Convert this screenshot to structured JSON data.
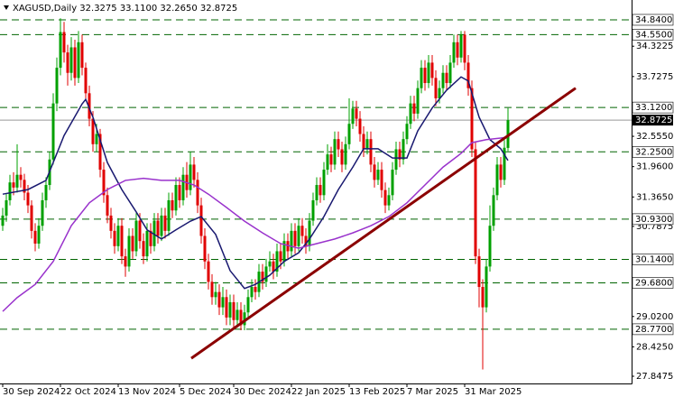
{
  "chart_data": {
    "type": "candlestick",
    "title": "XAGUSD,Daily  32.3275 33.1100 32.2650 32.8725",
    "bull_color": "#00a000",
    "bear_color": "#e00000",
    "open": [
      30.8,
      31.0,
      31.3,
      31.65,
      31.55,
      31.8,
      31.7,
      31.45,
      31.2,
      30.7,
      30.45,
      30.8,
      31.3,
      31.6,
      32.1,
      33.2,
      33.9,
      34.6,
      34.2,
      33.8,
      34.3,
      33.7,
      34.4,
      33.9,
      33.4,
      32.9,
      32.4,
      32.6,
      31.9,
      31.4,
      31.0,
      30.7,
      30.4,
      30.8,
      30.2,
      30.0,
      30.6,
      30.3,
      30.9,
      30.5,
      30.2,
      30.7,
      30.4,
      30.9,
      30.6,
      31.0,
      30.7,
      31.3,
      31.1,
      31.6,
      31.3,
      31.8,
      31.5,
      32.0,
      31.7,
      31.2,
      30.6,
      30.1,
      29.7,
      29.4,
      29.5,
      29.2,
      29.4,
      29.0,
      29.3,
      28.95,
      29.15,
      28.85,
      29.1,
      29.4,
      29.6,
      29.5,
      29.9,
      29.7,
      30.0,
      30.1,
      29.9,
      30.3,
      30.1,
      30.5,
      30.3,
      30.7,
      30.4,
      30.8,
      30.6,
      30.4,
      30.9,
      31.3,
      31.6,
      31.4,
      31.9,
      32.2,
      32.0,
      32.5,
      32.3,
      32.0,
      32.4,
      32.8,
      33.1,
      32.9,
      32.6,
      32.3,
      32.5,
      32.0,
      31.7,
      31.9,
      31.5,
      31.2,
      31.4,
      31.9,
      32.3,
      32.1,
      32.5,
      32.8,
      33.2,
      33.0,
      33.5,
      33.9,
      33.6,
      34.0,
      33.7,
      33.3,
      33.5,
      33.8,
      33.6,
      34.0,
      34.4,
      34.1,
      34.55,
      34.0,
      33.5,
      32.3,
      30.2,
      29.6,
      29.2,
      30.0,
      30.8,
      31.4,
      32.0,
      31.7,
      32.3275
    ],
    "high": [
      31.15,
      31.42,
      31.8,
      31.85,
      32.4,
      31.95,
      31.82,
      31.6,
      31.3,
      30.85,
      30.95,
      31.45,
      31.75,
      32.25,
      33.4,
      34.1,
      34.87,
      34.8,
      34.35,
      34.5,
      34.45,
      34.62,
      34.55,
      34.0,
      33.55,
      33.05,
      32.8,
      32.7,
      32.05,
      31.55,
      31.15,
      30.85,
      30.95,
      30.95,
      30.35,
      30.75,
      30.75,
      31.05,
      31.05,
      30.65,
      30.85,
      30.85,
      31.05,
      31.05,
      31.15,
      31.15,
      31.45,
      31.45,
      31.75,
      31.75,
      31.95,
      32.05,
      32.25,
      32.15,
      31.85,
      31.35,
      30.75,
      30.25,
      29.85,
      29.7,
      29.65,
      29.6,
      29.55,
      29.45,
      29.45,
      29.3,
      29.3,
      29.25,
      29.55,
      29.75,
      29.75,
      30.05,
      30.05,
      30.15,
      30.3,
      30.25,
      30.45,
      30.45,
      30.65,
      30.65,
      30.85,
      30.85,
      30.95,
      30.95,
      30.75,
      31.05,
      31.45,
      31.75,
      31.75,
      32.05,
      32.4,
      32.35,
      32.65,
      32.65,
      32.45,
      32.55,
      33.3,
      33.25,
      33.25,
      33.05,
      32.75,
      32.65,
      32.65,
      32.15,
      32.05,
      32.05,
      31.65,
      31.55,
      32.05,
      32.45,
      32.45,
      32.65,
      32.95,
      33.35,
      33.35,
      33.65,
      34.05,
      34.05,
      34.15,
      34.15,
      33.85,
      33.65,
      33.95,
      33.95,
      34.15,
      34.55,
      34.55,
      34.62,
      34.62,
      34.15,
      33.65,
      32.45,
      30.35,
      29.75,
      30.15,
      31.2,
      31.55,
      32.15,
      32.15,
      32.48,
      33.11
    ],
    "low": [
      30.7,
      30.88,
      31.2,
      31.4,
      31.45,
      31.55,
      31.3,
      31.05,
      30.55,
      30.3,
      30.35,
      30.7,
      31.15,
      31.5,
      32.0,
      33.05,
      33.75,
      34.0,
      33.55,
      33.65,
      33.55,
      33.6,
      33.75,
      33.25,
      32.75,
      32.25,
      32.25,
      31.75,
      31.25,
      30.85,
      30.55,
      30.25,
      30.3,
      30.05,
      29.8,
      29.9,
      30.15,
      30.2,
      30.35,
      30.05,
      30.1,
      30.25,
      30.3,
      30.45,
      30.5,
      30.55,
      30.6,
      30.95,
      31.0,
      31.15,
      31.2,
      31.35,
      31.4,
      31.55,
      31.05,
      30.45,
      29.95,
      29.55,
      29.25,
      29.25,
      29.05,
      29.05,
      28.85,
      28.85,
      28.8,
      28.8,
      28.75,
      28.75,
      29.0,
      29.3,
      29.35,
      29.4,
      29.55,
      29.6,
      29.9,
      29.75,
      29.8,
      29.95,
      30.0,
      30.15,
      30.2,
      30.25,
      30.3,
      30.45,
      30.25,
      30.3,
      30.8,
      31.2,
      31.25,
      31.3,
      31.8,
      31.85,
      31.9,
      32.15,
      31.85,
      31.9,
      32.3,
      32.7,
      32.75,
      32.45,
      32.15,
      32.2,
      31.85,
      31.55,
      31.6,
      31.35,
      31.05,
      31.1,
      31.3,
      31.8,
      31.95,
      32.0,
      32.4,
      32.7,
      32.85,
      32.9,
      33.4,
      33.45,
      33.5,
      33.55,
      33.15,
      33.2,
      33.4,
      33.45,
      33.5,
      33.9,
      33.95,
      34.0,
      33.85,
      33.35,
      32.15,
      30.05,
      29.2,
      27.98,
      29.1,
      29.9,
      30.7,
      31.3,
      31.55,
      31.6,
      32.265
    ],
    "close": [
      31.0,
      31.3,
      31.65,
      31.55,
      31.8,
      31.7,
      31.45,
      31.2,
      30.7,
      30.45,
      30.8,
      31.3,
      31.6,
      32.1,
      33.2,
      33.9,
      34.6,
      34.2,
      33.8,
      34.3,
      33.7,
      34.4,
      33.9,
      33.4,
      32.9,
      32.4,
      32.6,
      31.9,
      31.4,
      31.0,
      30.7,
      30.4,
      30.8,
      30.2,
      30.0,
      30.6,
      30.3,
      30.9,
      30.5,
      30.2,
      30.7,
      30.4,
      30.9,
      30.6,
      31.0,
      30.7,
      31.3,
      31.1,
      31.6,
      31.3,
      31.8,
      31.5,
      32.0,
      31.7,
      31.2,
      30.6,
      30.1,
      29.7,
      29.4,
      29.5,
      29.2,
      29.4,
      29.0,
      29.3,
      28.95,
      29.15,
      28.85,
      29.1,
      29.4,
      29.6,
      29.5,
      29.9,
      29.7,
      30.0,
      30.1,
      29.9,
      30.3,
      30.1,
      30.5,
      30.3,
      30.7,
      30.4,
      30.8,
      30.6,
      30.4,
      30.9,
      31.3,
      31.6,
      31.4,
      31.9,
      32.2,
      32.0,
      32.5,
      32.3,
      32.0,
      32.4,
      32.8,
      33.1,
      32.9,
      32.6,
      32.3,
      32.5,
      32.0,
      31.7,
      31.9,
      31.5,
      31.2,
      31.4,
      31.9,
      32.3,
      32.1,
      32.5,
      32.8,
      33.2,
      33.0,
      33.5,
      33.9,
      33.6,
      34.0,
      33.7,
      33.3,
      33.5,
      33.8,
      33.6,
      34.0,
      34.4,
      34.1,
      34.55,
      34.0,
      33.5,
      32.3,
      30.2,
      29.6,
      29.2,
      30.0,
      30.8,
      31.4,
      32.0,
      31.7,
      32.33,
      32.8725
    ],
    "moving_averages": [
      {
        "color": "#191970",
        "x": [
          0,
          7,
          12,
          17,
          22,
          23,
          25,
          29,
          33,
          37,
          40,
          44,
          48,
          52,
          55,
          59,
          63,
          67,
          70,
          74,
          78,
          82,
          85,
          89,
          93,
          97,
          100,
          104,
          108,
          112,
          115,
          119,
          123,
          127,
          129,
          132,
          135,
          138,
          140
        ],
        "values": [
          31.42,
          31.51,
          31.69,
          32.57,
          33.19,
          33.28,
          32.93,
          32.04,
          31.51,
          31.07,
          30.72,
          30.54,
          30.72,
          30.89,
          30.98,
          30.63,
          29.92,
          29.57,
          29.65,
          29.83,
          30.1,
          30.27,
          30.54,
          30.98,
          31.51,
          31.95,
          32.31,
          32.31,
          32.13,
          32.13,
          32.66,
          33.11,
          33.46,
          33.72,
          33.64,
          32.93,
          32.49,
          32.31,
          32.08
        ]
      },
      {
        "color": "#9932cc",
        "x": [
          0,
          4,
          9,
          14,
          19,
          24,
          29,
          34,
          39,
          44,
          49,
          53,
          57,
          62,
          67,
          72,
          77,
          82,
          87,
          92,
          97,
          102,
          107,
          112,
          117,
          122,
          127,
          130,
          134,
          138,
          140
        ],
        "values": [
          29.12,
          29.39,
          29.65,
          30.1,
          30.8,
          31.25,
          31.51,
          31.69,
          31.73,
          31.69,
          31.69,
          31.6,
          31.42,
          31.16,
          30.89,
          30.66,
          30.45,
          30.36,
          30.45,
          30.54,
          30.66,
          30.8,
          30.98,
          31.25,
          31.6,
          31.95,
          32.22,
          32.43,
          32.49,
          32.52,
          32.54
        ]
      }
    ],
    "trendline": {
      "color": "#8b0000",
      "x": [
        52.25,
        158.75
      ],
      "values": [
        28.2,
        33.5
      ]
    },
    "levels_color": "#006400",
    "levels": [
      {
        "value": 34.84,
        "label": "34.8400"
      },
      {
        "value": 34.55,
        "label": "34.5500"
      },
      {
        "value": 33.12,
        "label": "33.1200"
      },
      {
        "value": 32.25,
        "label": "32.2500"
      },
      {
        "value": 30.93,
        "label": "30.9300"
      },
      {
        "value": 30.14,
        "label": "30.1400"
      },
      {
        "value": 29.68,
        "label": "29.6800"
      },
      {
        "value": 28.77,
        "label": "28.7700"
      }
    ],
    "last_price": {
      "value": 32.8725,
      "label": "32.8725"
    },
    "xlim": [
      -0.75,
      174.25
    ],
    "ylim": [
      27.706,
      35.229
    ],
    "yticks": [
      {
        "value": 34.3225,
        "label": "34.3225"
      },
      {
        "value": 33.7275,
        "label": "33.7275"
      },
      {
        "value": 32.555,
        "label": "32.5550"
      },
      {
        "value": 31.96,
        "label": "31.9600"
      },
      {
        "value": 31.365,
        "label": "31.3650"
      },
      {
        "value": 30.7875,
        "label": "30.7875"
      },
      {
        "value": 29.02,
        "label": "29.0200"
      },
      {
        "value": 28.425,
        "label": "28.4250"
      },
      {
        "value": 27.8475,
        "label": "27.8475"
      }
    ],
    "xticks": [
      {
        "value": 0,
        "label": "30 Sep 2024"
      },
      {
        "value": 16,
        "label": "22 Oct 2024"
      },
      {
        "value": 32,
        "label": "13 Nov 2024"
      },
      {
        "value": 49,
        "label": "5 Dec 2024"
      },
      {
        "value": 64,
        "label": "30 Dec 2024"
      },
      {
        "value": 80,
        "label": "22 Jan 2025"
      },
      {
        "value": 96,
        "label": "13 Feb 2025"
      },
      {
        "value": 112,
        "label": "7 Mar 2025"
      },
      {
        "value": 128,
        "label": "31 Mar 2025"
      }
    ]
  }
}
